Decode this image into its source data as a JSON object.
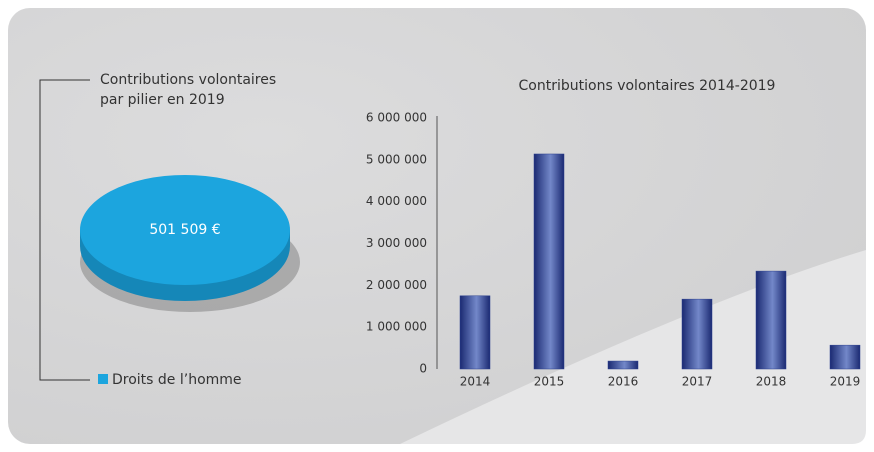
{
  "chart_data": [
    {
      "type": "pie",
      "title": [
        "Contributions volontaires",
        "par pilier en 2019"
      ],
      "categories": [
        "Droits de l’homme"
      ],
      "values": [
        501509
      ],
      "value_labels": [
        "501 509 €"
      ],
      "colors": [
        "#1ca5de"
      ],
      "legend": "bottom-left"
    },
    {
      "type": "bar",
      "title": "Contributions volontaires 2014-2019",
      "categories": [
        "2014",
        "2015",
        "2016",
        "2017",
        "2018",
        "2019"
      ],
      "values": [
        1750000,
        5140000,
        190000,
        1670000,
        2340000,
        570000
      ],
      "color": "#2a3f8f",
      "ylim": [
        0,
        6000000
      ],
      "yticks": [
        0,
        {
          "value": 1000000,
          "label": "1 000 000"
        },
        {
          "value": 2000000,
          "label": "2 000 000"
        },
        {
          "value": 3000000,
          "label": "3 000 000"
        },
        {
          "value": 4000000,
          "label": "4 000 000"
        },
        {
          "value": 5000000,
          "label": "5 000 000"
        },
        {
          "value": 6000000,
          "label": "6 000 000"
        }
      ],
      "grid": false
    }
  ]
}
